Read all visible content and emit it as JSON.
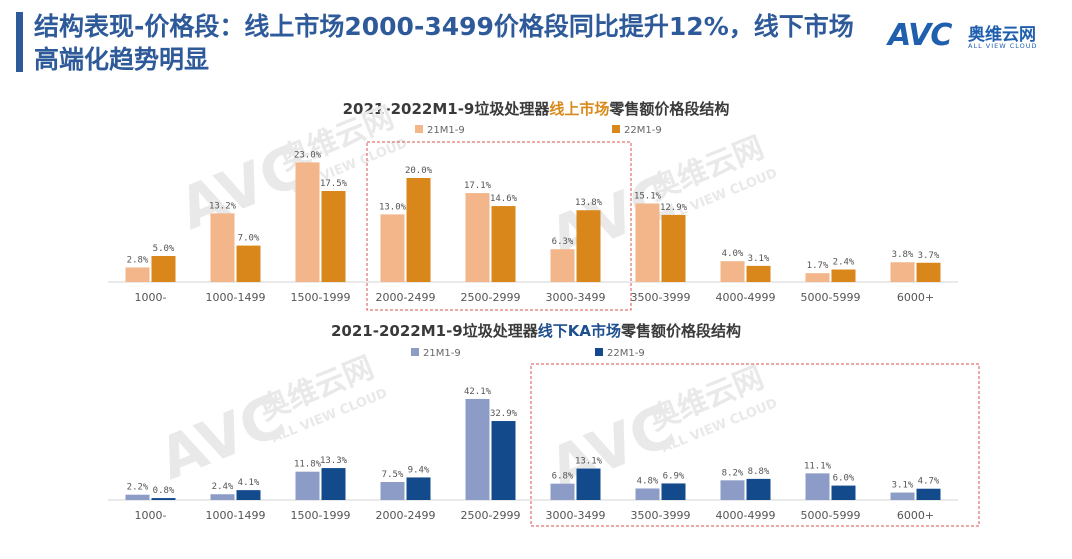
{
  "header": {
    "title": "结构表现-价格段：线上市场2000-3499价格段同比提升12%，线下市场高端化趋势明显",
    "logo_mark": "AVC",
    "logo_cn": "奥维云网",
    "logo_en": "ALL VIEW CLOUD"
  },
  "watermark": {
    "cn": "奥维云网",
    "en": "ALL VIEW CLOUD",
    "mark": "AVC"
  },
  "colors": {
    "online_21": "#f2b68a",
    "online_22": "#d9861a",
    "offline_21": "#8c9cc6",
    "offline_22": "#124a8c",
    "highlight_box": "#d9534f",
    "title": "#2e5a9a"
  },
  "chart_data": [
    {
      "type": "bar",
      "title_parts": [
        "2021-2022M1-9垃圾处理器",
        "线上市场",
        "零售额价格段结构"
      ],
      "categories": [
        "1000-",
        "1000-1499",
        "1500-1999",
        "2000-2499",
        "2500-2999",
        "3000-3499",
        "3500-3999",
        "4000-4999",
        "5000-5999",
        "6000+"
      ],
      "series": [
        {
          "name": "21M1-9",
          "values": [
            2.8,
            13.2,
            23.0,
            13.0,
            17.1,
            6.3,
            15.1,
            4.0,
            1.7,
            3.8
          ],
          "labels": [
            "2.8%",
            "13.2%",
            "23.0%",
            "13.0%",
            "17.1%",
            "6.3%",
            "15.1%",
            "4.0%",
            "1.7%",
            "3.8%"
          ]
        },
        {
          "name": "22M1-9",
          "values": [
            5.0,
            7.0,
            17.5,
            20.0,
            14.6,
            13.8,
            12.9,
            3.1,
            2.4,
            3.7
          ],
          "labels": [
            "5.0%",
            "7.0%",
            "17.5%",
            "20.0%",
            "14.6%",
            "13.8%",
            "12.9%",
            "3.1%",
            "2.4%",
            "3.7%"
          ]
        }
      ],
      "highlight": [
        "2000-2499",
        "3000-3499"
      ],
      "legend_position": "top"
    },
    {
      "type": "bar",
      "title_parts": [
        "2021-2022M1-9垃圾处理器",
        "线下KA市场",
        "零售额价格段结构"
      ],
      "categories": [
        "1000-",
        "1000-1499",
        "1500-1999",
        "2000-2499",
        "2500-2999",
        "3000-3499",
        "3500-3999",
        "4000-4999",
        "5000-5999",
        "6000+"
      ],
      "series": [
        {
          "name": "21M1-9",
          "values": [
            2.2,
            2.4,
            11.8,
            7.5,
            42.1,
            6.8,
            4.8,
            8.2,
            11.1,
            3.1
          ],
          "labels": [
            "2.2%",
            "2.4%",
            "11.8%",
            "7.5%",
            "42.1%",
            "6.8%",
            "4.8%",
            "8.2%",
            "11.1%",
            "3.1%"
          ]
        },
        {
          "name": "22M1-9",
          "values": [
            0.8,
            4.1,
            13.3,
            9.4,
            32.9,
            13.1,
            6.9,
            8.8,
            6.0,
            4.7
          ],
          "labels": [
            "0.8%",
            "4.1%",
            "13.3%",
            "9.4%",
            "32.9%",
            "13.1%",
            "6.9%",
            "8.8%",
            "6.0%",
            "4.7%"
          ]
        }
      ],
      "highlight": [
        "3000-3499",
        "6000+"
      ],
      "legend_position": "top"
    }
  ]
}
